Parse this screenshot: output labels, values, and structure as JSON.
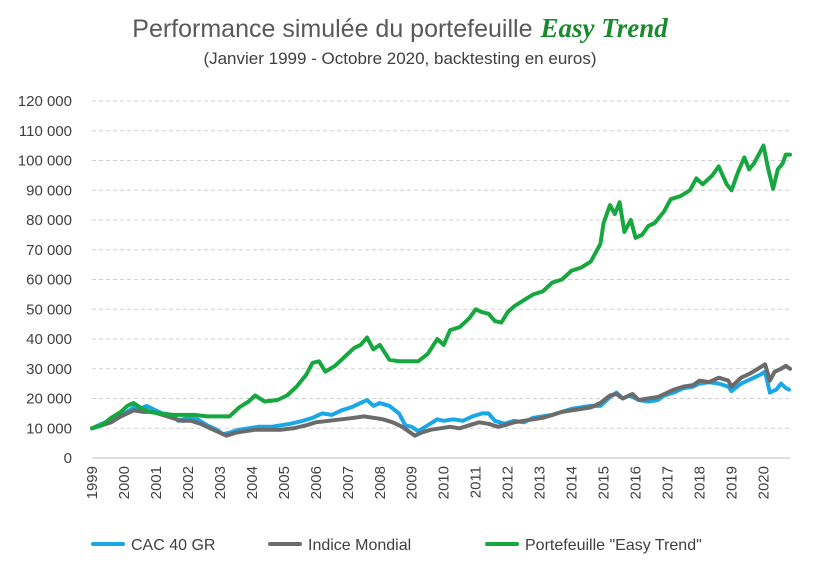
{
  "chart_data": {
    "type": "line",
    "title": "Performance simulée du portefeuille",
    "title_brand": "Easy Trend",
    "subtitle": "(Janvier 1999 - Octobre 2020, backtesting en euros)",
    "xlabel": "",
    "ylabel": "",
    "ylim": [
      0,
      120000
    ],
    "xlim": [
      1999,
      2020.83
    ],
    "grid": true,
    "legend_position": "bottom",
    "y_ticks": [
      "0",
      "10 000",
      "20 000",
      "30 000",
      "40 000",
      "50 000",
      "60 000",
      "70 000",
      "80 000",
      "90 000",
      "100 000",
      "110 000",
      "120 000"
    ],
    "x_ticks": [
      "1999",
      "2000",
      "2001",
      "2002",
      "2003",
      "2004",
      "2005",
      "2006",
      "2007",
      "2008",
      "2009",
      "2010",
      "2011",
      "2012",
      "2013",
      "2014",
      "2015",
      "2016",
      "2017",
      "2018",
      "2019",
      "2020"
    ],
    "series": [
      {
        "name": "CAC 40 GR",
        "color": "#1aa7e8",
        "points": [
          [
            1999.0,
            10000
          ],
          [
            1999.3,
            11500
          ],
          [
            1999.6,
            12500
          ],
          [
            1999.9,
            14500
          ],
          [
            2000.1,
            15500
          ],
          [
            2000.3,
            17000
          ],
          [
            2000.5,
            16500
          ],
          [
            2000.7,
            17500
          ],
          [
            2000.9,
            16500
          ],
          [
            2001.2,
            15000
          ],
          [
            2001.5,
            14500
          ],
          [
            2001.7,
            12500
          ],
          [
            2002.0,
            13500
          ],
          [
            2002.3,
            13000
          ],
          [
            2002.6,
            11000
          ],
          [
            2002.9,
            9500
          ],
          [
            2003.1,
            8000
          ],
          [
            2003.3,
            8500
          ],
          [
            2003.6,
            9500
          ],
          [
            2003.9,
            10000
          ],
          [
            2004.2,
            10500
          ],
          [
            2004.6,
            10500
          ],
          [
            2004.9,
            11000
          ],
          [
            2005.2,
            11500
          ],
          [
            2005.6,
            12500
          ],
          [
            2005.9,
            13500
          ],
          [
            2006.2,
            15000
          ],
          [
            2006.5,
            14500
          ],
          [
            2006.8,
            16000
          ],
          [
            2007.1,
            17000
          ],
          [
            2007.4,
            18500
          ],
          [
            2007.6,
            19500
          ],
          [
            2007.8,
            17500
          ],
          [
            2008.0,
            18500
          ],
          [
            2008.3,
            17500
          ],
          [
            2008.6,
            15000
          ],
          [
            2008.8,
            11000
          ],
          [
            2009.0,
            10500
          ],
          [
            2009.2,
            9000
          ],
          [
            2009.5,
            11000
          ],
          [
            2009.8,
            13000
          ],
          [
            2010.0,
            12500
          ],
          [
            2010.3,
            13000
          ],
          [
            2010.6,
            12500
          ],
          [
            2010.9,
            14000
          ],
          [
            2011.2,
            15000
          ],
          [
            2011.4,
            15000
          ],
          [
            2011.6,
            12500
          ],
          [
            2011.9,
            11500
          ],
          [
            2012.2,
            12500
          ],
          [
            2012.5,
            12000
          ],
          [
            2012.8,
            13500
          ],
          [
            2013.1,
            14000
          ],
          [
            2013.4,
            14500
          ],
          [
            2013.7,
            15500
          ],
          [
            2014.0,
            16500
          ],
          [
            2014.3,
            17000
          ],
          [
            2014.6,
            17500
          ],
          [
            2014.9,
            17500
          ],
          [
            2015.2,
            20500
          ],
          [
            2015.4,
            22000
          ],
          [
            2015.6,
            20000
          ],
          [
            2015.8,
            21000
          ],
          [
            2016.1,
            19500
          ],
          [
            2016.4,
            19000
          ],
          [
            2016.7,
            19500
          ],
          [
            2016.9,
            21000
          ],
          [
            2017.2,
            22000
          ],
          [
            2017.5,
            23500
          ],
          [
            2017.8,
            24000
          ],
          [
            2018.0,
            25000
          ],
          [
            2018.3,
            25500
          ],
          [
            2018.6,
            25000
          ],
          [
            2018.9,
            24000
          ],
          [
            2019.0,
            22500
          ],
          [
            2019.3,
            25000
          ],
          [
            2019.6,
            26500
          ],
          [
            2019.9,
            28000
          ],
          [
            2020.05,
            29000
          ],
          [
            2020.2,
            22000
          ],
          [
            2020.4,
            23000
          ],
          [
            2020.55,
            25000
          ],
          [
            2020.7,
            23500
          ],
          [
            2020.8,
            23000
          ]
        ]
      },
      {
        "name": "Indice Mondial",
        "color": "#6b6b6b",
        "points": [
          [
            1999.0,
            10000
          ],
          [
            1999.3,
            11000
          ],
          [
            1999.6,
            12000
          ],
          [
            1999.9,
            14000
          ],
          [
            2000.1,
            15000
          ],
          [
            2000.3,
            16000
          ],
          [
            2000.6,
            15500
          ],
          [
            2000.9,
            15500
          ],
          [
            2001.2,
            14500
          ],
          [
            2001.5,
            13500
          ],
          [
            2001.8,
            12500
          ],
          [
            2002.1,
            12500
          ],
          [
            2002.4,
            11500
          ],
          [
            2002.7,
            10000
          ],
          [
            2003.0,
            8500
          ],
          [
            2003.2,
            7500
          ],
          [
            2003.5,
            8500
          ],
          [
            2003.8,
            9000
          ],
          [
            2004.1,
            9500
          ],
          [
            2004.5,
            9500
          ],
          [
            2004.9,
            9500
          ],
          [
            2005.3,
            10000
          ],
          [
            2005.7,
            11000
          ],
          [
            2006.0,
            12000
          ],
          [
            2006.4,
            12500
          ],
          [
            2006.8,
            13000
          ],
          [
            2007.2,
            13500
          ],
          [
            2007.5,
            14000
          ],
          [
            2007.8,
            13500
          ],
          [
            2008.1,
            13000
          ],
          [
            2008.4,
            12000
          ],
          [
            2008.7,
            10500
          ],
          [
            2008.9,
            9000
          ],
          [
            2009.1,
            7500
          ],
          [
            2009.3,
            8500
          ],
          [
            2009.6,
            9500
          ],
          [
            2009.9,
            10000
          ],
          [
            2010.2,
            10500
          ],
          [
            2010.5,
            10000
          ],
          [
            2010.8,
            11000
          ],
          [
            2011.1,
            12000
          ],
          [
            2011.4,
            11500
          ],
          [
            2011.7,
            10500
          ],
          [
            2011.9,
            11000
          ],
          [
            2012.2,
            12000
          ],
          [
            2012.5,
            12500
          ],
          [
            2012.8,
            13000
          ],
          [
            2013.1,
            13500
          ],
          [
            2013.4,
            14500
          ],
          [
            2013.7,
            15500
          ],
          [
            2014.0,
            16000
          ],
          [
            2014.3,
            16500
          ],
          [
            2014.6,
            17000
          ],
          [
            2014.9,
            18500
          ],
          [
            2015.2,
            21000
          ],
          [
            2015.4,
            21500
          ],
          [
            2015.6,
            20000
          ],
          [
            2015.9,
            21500
          ],
          [
            2016.1,
            19500
          ],
          [
            2016.4,
            20000
          ],
          [
            2016.7,
            20500
          ],
          [
            2016.9,
            21500
          ],
          [
            2017.2,
            23000
          ],
          [
            2017.5,
            24000
          ],
          [
            2017.8,
            24500
          ],
          [
            2018.0,
            26000
          ],
          [
            2018.3,
            25500
          ],
          [
            2018.6,
            27000
          ],
          [
            2018.9,
            26000
          ],
          [
            2019.0,
            24000
          ],
          [
            2019.3,
            27000
          ],
          [
            2019.6,
            28500
          ],
          [
            2019.9,
            30500
          ],
          [
            2020.05,
            31500
          ],
          [
            2020.2,
            26000
          ],
          [
            2020.35,
            29000
          ],
          [
            2020.55,
            30000
          ],
          [
            2020.7,
            31000
          ],
          [
            2020.83,
            30000
          ]
        ]
      },
      {
        "name": "Portefeuille \"Easy Trend\"",
        "color": "#16a83f",
        "points": [
          [
            1999.0,
            10000
          ],
          [
            1999.3,
            11000
          ],
          [
            1999.6,
            13500
          ],
          [
            1999.9,
            15500
          ],
          [
            2000.1,
            17500
          ],
          [
            2000.3,
            18500
          ],
          [
            2000.5,
            17000
          ],
          [
            2000.8,
            15500
          ],
          [
            2001.1,
            15000
          ],
          [
            2001.5,
            14500
          ],
          [
            2001.9,
            14500
          ],
          [
            2002.2,
            14500
          ],
          [
            2002.6,
            14000
          ],
          [
            2003.0,
            14000
          ],
          [
            2003.3,
            14000
          ],
          [
            2003.6,
            17000
          ],
          [
            2003.9,
            19000
          ],
          [
            2004.1,
            21000
          ],
          [
            2004.4,
            19000
          ],
          [
            2004.8,
            19500
          ],
          [
            2005.1,
            21000
          ],
          [
            2005.4,
            24000
          ],
          [
            2005.7,
            28000
          ],
          [
            2005.9,
            32000
          ],
          [
            2006.1,
            32500
          ],
          [
            2006.3,
            29000
          ],
          [
            2006.6,
            31000
          ],
          [
            2006.9,
            34000
          ],
          [
            2007.2,
            37000
          ],
          [
            2007.4,
            38000
          ],
          [
            2007.6,
            40500
          ],
          [
            2007.8,
            36500
          ],
          [
            2008.0,
            38000
          ],
          [
            2008.3,
            33000
          ],
          [
            2008.6,
            32500
          ],
          [
            2008.9,
            32500
          ],
          [
            2009.2,
            32500
          ],
          [
            2009.5,
            35000
          ],
          [
            2009.8,
            40000
          ],
          [
            2010.0,
            38000
          ],
          [
            2010.2,
            43000
          ],
          [
            2010.5,
            44000
          ],
          [
            2010.8,
            47000
          ],
          [
            2011.0,
            50000
          ],
          [
            2011.2,
            49000
          ],
          [
            2011.4,
            48500
          ],
          [
            2011.6,
            46000
          ],
          [
            2011.8,
            45500
          ],
          [
            2012.0,
            49000
          ],
          [
            2012.2,
            51000
          ],
          [
            2012.5,
            53000
          ],
          [
            2012.8,
            55000
          ],
          [
            2013.1,
            56000
          ],
          [
            2013.4,
            59000
          ],
          [
            2013.7,
            60000
          ],
          [
            2014.0,
            63000
          ],
          [
            2014.3,
            64000
          ],
          [
            2014.6,
            66000
          ],
          [
            2014.9,
            72000
          ],
          [
            2015.0,
            79000
          ],
          [
            2015.2,
            85000
          ],
          [
            2015.35,
            82000
          ],
          [
            2015.5,
            86000
          ],
          [
            2015.65,
            76000
          ],
          [
            2015.85,
            80000
          ],
          [
            2016.0,
            74000
          ],
          [
            2016.2,
            75000
          ],
          [
            2016.4,
            78000
          ],
          [
            2016.6,
            79000
          ],
          [
            2016.9,
            83000
          ],
          [
            2017.1,
            87000
          ],
          [
            2017.4,
            88000
          ],
          [
            2017.7,
            90000
          ],
          [
            2017.9,
            94000
          ],
          [
            2018.1,
            92000
          ],
          [
            2018.4,
            95000
          ],
          [
            2018.6,
            98000
          ],
          [
            2018.85,
            92000
          ],
          [
            2019.0,
            90000
          ],
          [
            2019.2,
            96000
          ],
          [
            2019.4,
            101000
          ],
          [
            2019.55,
            97000
          ],
          [
            2019.7,
            99000
          ],
          [
            2019.9,
            103000
          ],
          [
            2020.0,
            105000
          ],
          [
            2020.15,
            97000
          ],
          [
            2020.3,
            90500
          ],
          [
            2020.45,
            97000
          ],
          [
            2020.6,
            99000
          ],
          [
            2020.7,
            102000
          ],
          [
            2020.83,
            102000
          ]
        ]
      }
    ]
  }
}
